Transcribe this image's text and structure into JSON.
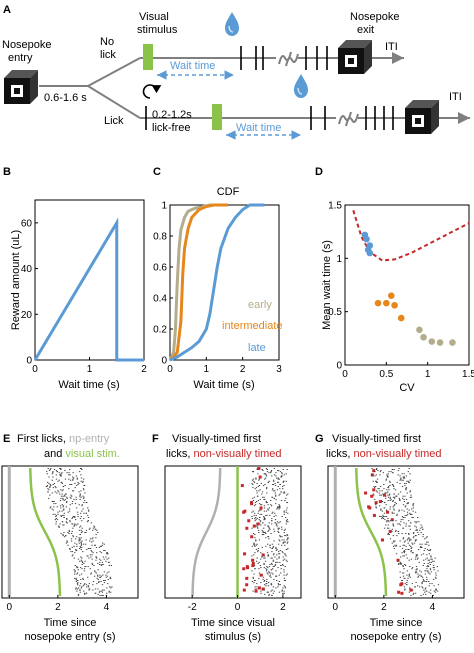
{
  "colors": {
    "blue": "#5b9bd5",
    "green": "#8bc34a",
    "orange": "#e6861b",
    "tan": "#b3ad8c",
    "gray": "#b0b0b0",
    "red": "#c62828",
    "black": "#000000"
  },
  "icons": [
    "nosepoke-box-icon",
    "water-drop-icon",
    "loop-arrow-icon"
  ],
  "panelA": {
    "letter": "A",
    "nosepoke_entry": [
      "Nosepoke",
      "entry"
    ],
    "visual_stimulus": [
      "Visual",
      "stimulus"
    ],
    "nosepoke_exit": [
      "Nosepoke",
      "exit"
    ],
    "no_lick": [
      "No",
      "lick"
    ],
    "lick": "Lick",
    "delay": "0.6-1.6 s",
    "lick_free": [
      "0.2-1.2s",
      "lick-free"
    ],
    "wait_time": "Wait time",
    "iti": "ITI"
  },
  "panelB": {
    "letter": "B",
    "ylabel": "Reward amount (uL)",
    "xlabel": "Wait time (s)",
    "chart_data": {
      "type": "line",
      "x": [
        0,
        1.5,
        1.5,
        2
      ],
      "y": [
        0,
        60,
        0,
        0
      ],
      "xlim": [
        0,
        2
      ],
      "ylim": [
        0,
        70
      ],
      "xticks": [
        "0",
        "1",
        "2"
      ],
      "yticks": [
        "0",
        "20",
        "40",
        "60"
      ],
      "xlabel": "Wait time (s)",
      "ylabel": "Reward amount (uL)"
    }
  },
  "panelC": {
    "letter": "C",
    "title": "CDF",
    "xlabel": "Wait time (s)",
    "legend": [
      "early",
      "intermediate",
      "late"
    ],
    "chart_data": {
      "type": "line",
      "title": "CDF",
      "xlim": [
        0,
        3
      ],
      "ylim": [
        0,
        1
      ],
      "xticks": [
        "0",
        "1",
        "2",
        "3"
      ],
      "yticks": [
        "0",
        "0.2",
        "0.4",
        "0.6",
        "0.8",
        "1"
      ],
      "xlabel": "Wait time (s)",
      "series": [
        {
          "name": "early",
          "x": [
            0,
            0.1,
            0.15,
            0.2,
            0.25,
            0.3,
            0.4,
            0.5,
            0.7,
            0.9,
            1.1,
            1.3
          ],
          "y": [
            0,
            0.05,
            0.2,
            0.5,
            0.72,
            0.84,
            0.92,
            0.96,
            0.98,
            0.99,
            1,
            1
          ]
        },
        {
          "name": "intermediate",
          "x": [
            0,
            0.1,
            0.2,
            0.3,
            0.35,
            0.4,
            0.5,
            0.6,
            0.8,
            1.0,
            1.2,
            1.6
          ],
          "y": [
            0,
            0.02,
            0.05,
            0.25,
            0.55,
            0.72,
            0.85,
            0.92,
            0.97,
            0.99,
            1,
            1
          ]
        },
        {
          "name": "late",
          "x": [
            0,
            0.2,
            0.4,
            0.6,
            0.8,
            1.0,
            1.1,
            1.2,
            1.3,
            1.4,
            1.6,
            1.8,
            2.0,
            2.2,
            2.6
          ],
          "y": [
            0,
            0.02,
            0.05,
            0.08,
            0.12,
            0.2,
            0.3,
            0.45,
            0.6,
            0.72,
            0.85,
            0.92,
            0.97,
            1,
            1
          ]
        }
      ]
    }
  },
  "panelD": {
    "letter": "D",
    "ylabel": "Mean wait time (s)",
    "xlabel": "CV",
    "chart_data": {
      "type": "scatter",
      "xlim": [
        0,
        1.5
      ],
      "ylim": [
        0,
        1.5
      ],
      "xticks": [
        "0",
        "0.5",
        "1",
        "1.5"
      ],
      "yticks": [
        "0",
        "0.5",
        "1",
        "1.5"
      ],
      "xlabel": "CV",
      "ylabel": "Mean wait time (s)",
      "series": [
        {
          "color": "blue",
          "x": [
            0.24,
            0.26,
            0.3,
            0.28,
            0.3
          ],
          "y": [
            1.22,
            1.18,
            1.12,
            1.08,
            1.05
          ]
        },
        {
          "color": "orange",
          "x": [
            0.4,
            0.5,
            0.56,
            0.6,
            0.68
          ],
          "y": [
            0.58,
            0.58,
            0.65,
            0.56,
            0.44
          ]
        },
        {
          "color": "tan",
          "x": [
            0.9,
            0.95,
            1.05,
            1.15,
            1.3
          ],
          "y": [
            0.33,
            0.26,
            0.22,
            0.21,
            0.21
          ]
        }
      ],
      "boundary": {
        "x": [
          0.1,
          0.2,
          0.3,
          0.45,
          0.6,
          0.8,
          1.0,
          1.2,
          1.4,
          1.5
        ],
        "y": [
          1.45,
          1.2,
          1.06,
          0.98,
          0.99,
          1.05,
          1.13,
          1.21,
          1.29,
          1.33
        ]
      }
    }
  },
  "panelE": {
    "letter": "E",
    "title1": [
      {
        "text": "First licks, ",
        "color": "black"
      },
      {
        "text": "np-entry",
        "color": "gray"
      }
    ],
    "title2": [
      {
        "text": "and ",
        "color": "black"
      },
      {
        "text": "visual stim.",
        "color": "green"
      }
    ],
    "xlabel": [
      "Time since",
      "nosepoke entry (s)"
    ],
    "xticks": [
      "0",
      "2",
      "4"
    ]
  },
  "panelF": {
    "letter": "F",
    "title1": [
      {
        "text": "Visually-timed first",
        "color": "black"
      }
    ],
    "title2": [
      {
        "text": "licks, ",
        "color": "black"
      },
      {
        "text": "non-visually timed",
        "color": "red"
      }
    ],
    "xlabel": [
      "Time since visual",
      "stimulus (s)"
    ],
    "xticks": [
      "-2",
      "0",
      "2"
    ]
  },
  "panelG": {
    "letter": "G",
    "title1": [
      {
        "text": "Visually-timed first",
        "color": "black"
      }
    ],
    "title2": [
      {
        "text": "licks, ",
        "color": "black"
      },
      {
        "text": "non-visually timed",
        "color": "red"
      }
    ],
    "xlabel": [
      "Time since",
      "nosepoke entry (s)"
    ],
    "xticks": [
      "0",
      "2",
      "4"
    ]
  }
}
